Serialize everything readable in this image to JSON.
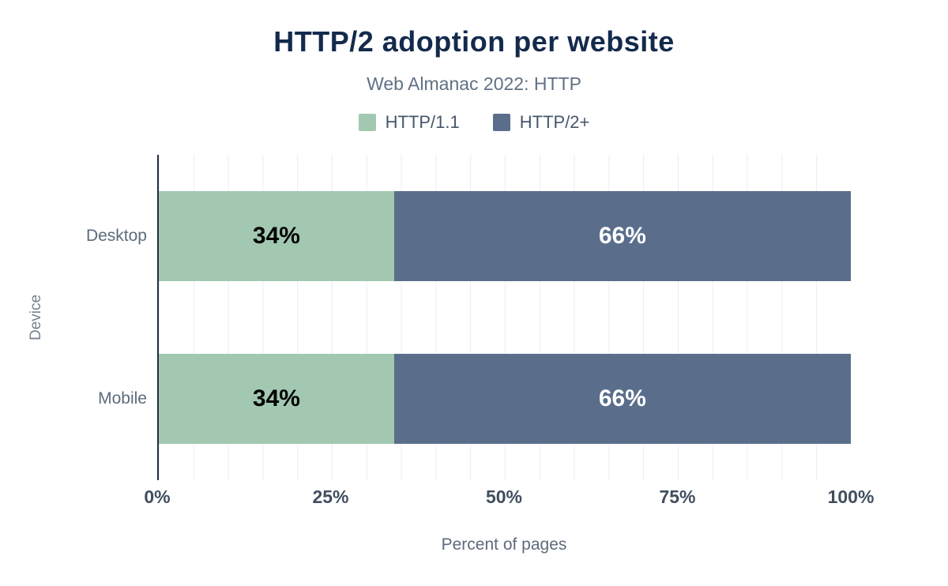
{
  "chart_data": {
    "type": "bar",
    "orientation": "horizontal",
    "stacked": true,
    "title": "HTTP/2 adoption per website",
    "subtitle": "Web Almanac 2022: HTTP",
    "xlabel": "Percent of pages",
    "ylabel": "Device",
    "categories": [
      "Desktop",
      "Mobile"
    ],
    "series": [
      {
        "name": "HTTP/1.1",
        "color": "#a2c8b2",
        "label_color": "#000000",
        "values": [
          34,
          34
        ]
      },
      {
        "name": "HTTP/2+",
        "color": "#5a6e8c",
        "label_color": "#ffffff",
        "values": [
          66,
          66
        ]
      }
    ],
    "value_suffix": "%",
    "x_ticks": [
      "0%",
      "25%",
      "50%",
      "75%",
      "100%"
    ],
    "xlim": [
      0,
      100
    ],
    "grid": "vertical gridlines every 5%",
    "legend_position": "top"
  },
  "colors": {
    "title": "#132a4c",
    "subtitle": "#5f7184",
    "axis_text": "#5c6b7c",
    "tick_text": "#414e5e",
    "background": "#ffffff"
  }
}
